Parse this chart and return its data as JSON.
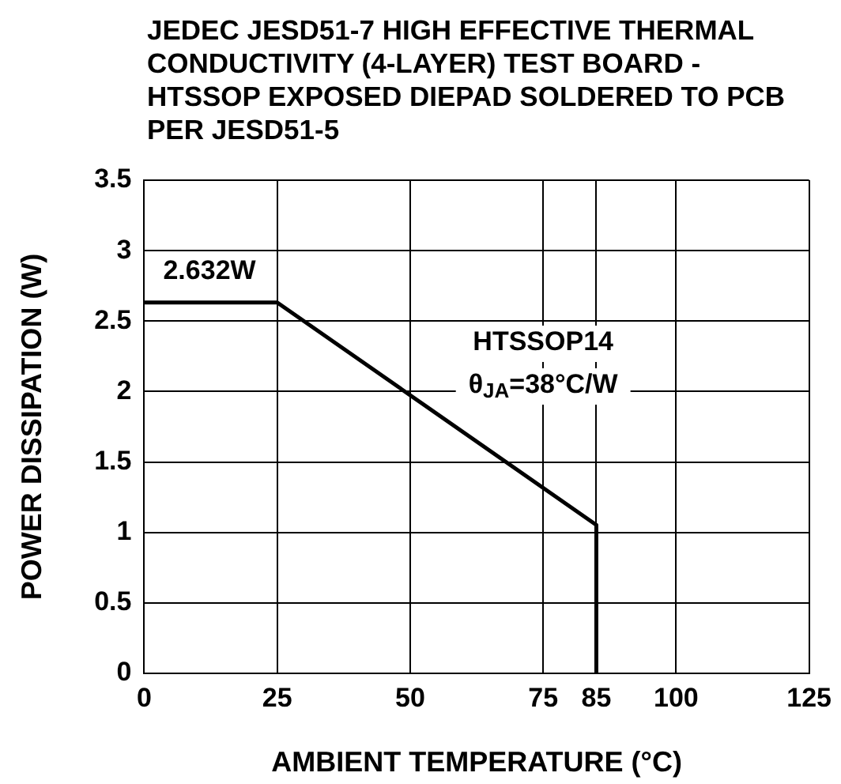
{
  "chart_data": {
    "type": "line",
    "title": "JEDEC JESD51-7 HIGH EFFECTIVE THERMAL CONDUCTIVITY (4-LAYER) TEST BOARD - HTSSOP EXPOSED DIEPAD SOLDERED TO PCB PER JESD51-5",
    "xlabel": "AMBIENT TEMPERATURE (°C)",
    "ylabel": "POWER DISSIPATION (W)",
    "x": [
      0,
      25,
      85,
      85
    ],
    "series": [
      {
        "color": "#000000",
        "values": [
          2.632,
          2.632,
          1.053,
          0
        ],
        "value_labels": [
          "2.632W",
          null,
          null,
          null
        ]
      }
    ],
    "xlim": [
      0,
      125
    ],
    "xticks": [
      0,
      25,
      50,
      75,
      85,
      100,
      125
    ],
    "ylim": [
      0,
      3.5
    ],
    "yticks": [
      0,
      0.5,
      1,
      1.5,
      2,
      2.5,
      3,
      3.5
    ],
    "grid": true,
    "legend": false,
    "marker": "none",
    "line_style": "solid",
    "annotations": [
      "HTSSOP14",
      "θ$_{JA}$=38°C/W"
    ]
  }
}
